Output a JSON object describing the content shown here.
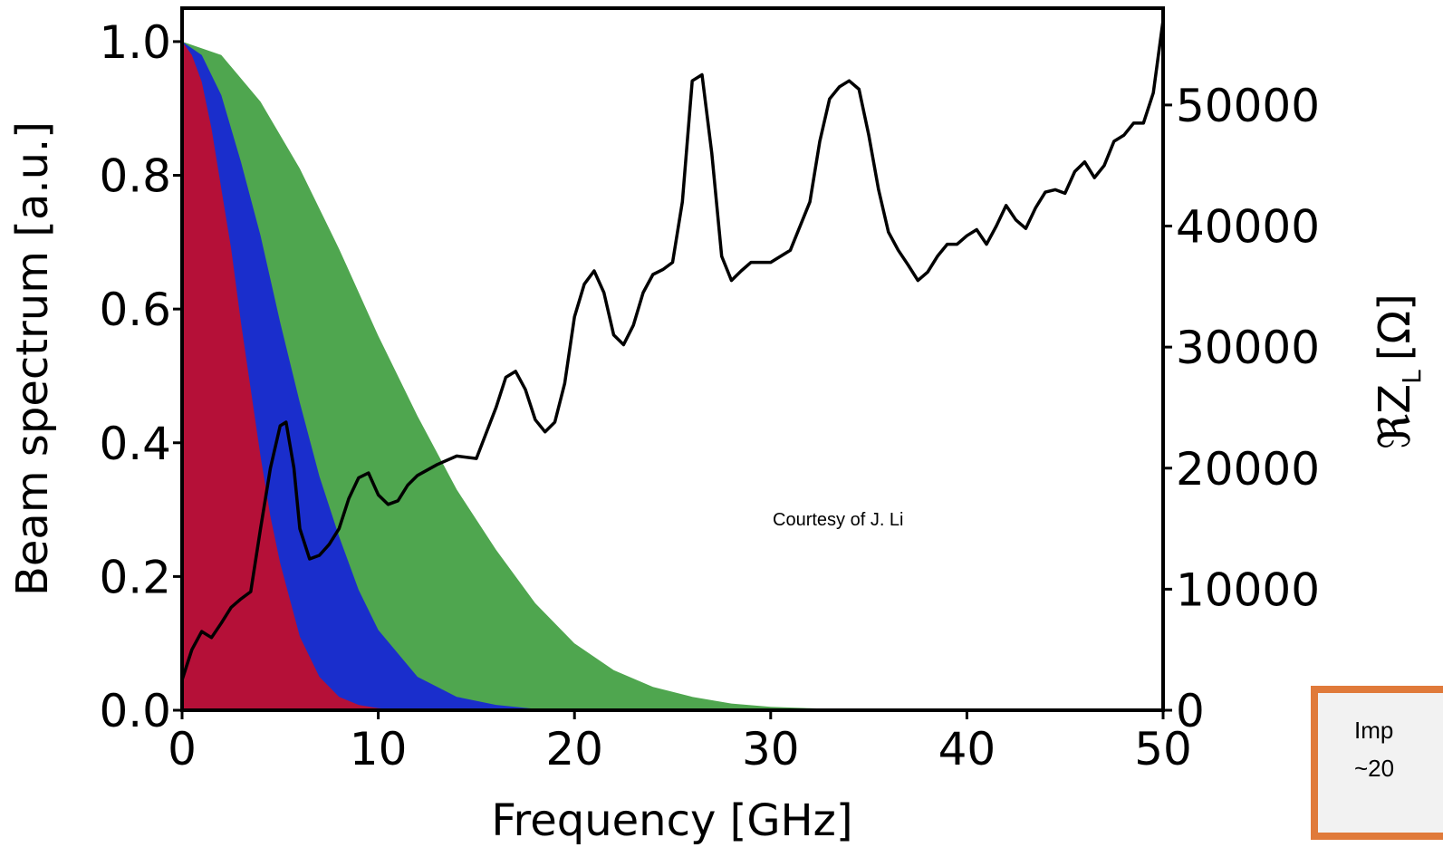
{
  "chart_data": {
    "type": "area",
    "xlabel": "Frequency [GHz]",
    "ylabel_left": "Beam spectrum [a.u.]",
    "ylabel_right": "ℜZ",
    "ylabel_right_subscript": "L",
    "ylabel_right_unit": "[Ω]",
    "xlim": [
      0,
      50
    ],
    "ylim_left": [
      0,
      1.05
    ],
    "ylim_right": [
      0,
      58000
    ],
    "x_ticks": [
      "0",
      "10",
      "20",
      "30",
      "40",
      "50"
    ],
    "y_left_ticks": [
      "0.0",
      "0.2",
      "0.4",
      "0.6",
      "0.8",
      "1.0"
    ],
    "y_right_ticks": [
      "0",
      "10000",
      "20000",
      "30000",
      "40000",
      "50000"
    ],
    "grid": false,
    "beam_spectra": [
      {
        "color": "#4fa64f",
        "x": [
          0,
          2,
          4,
          6,
          8,
          10,
          12,
          14,
          16,
          18,
          20,
          22,
          24,
          26,
          28,
          30,
          32,
          34,
          36,
          50
        ],
        "values": [
          1.0,
          0.98,
          0.91,
          0.81,
          0.69,
          0.56,
          0.44,
          0.33,
          0.24,
          0.16,
          0.1,
          0.06,
          0.035,
          0.02,
          0.01,
          0.005,
          0.003,
          0.001,
          0.0,
          0.0
        ]
      },
      {
        "color": "#1a2ecc",
        "x": [
          0,
          1,
          2,
          3,
          4,
          5,
          6,
          7,
          8,
          9,
          10,
          12,
          14,
          16,
          18,
          20,
          50
        ],
        "values": [
          1.0,
          0.98,
          0.92,
          0.82,
          0.71,
          0.58,
          0.46,
          0.35,
          0.26,
          0.18,
          0.12,
          0.05,
          0.02,
          0.008,
          0.002,
          0.0,
          0.0
        ]
      },
      {
        "color": "#b51038",
        "x": [
          0,
          0.5,
          1,
          1.5,
          2,
          2.5,
          3,
          3.5,
          4,
          4.5,
          5,
          6,
          7,
          8,
          9,
          10,
          11,
          12,
          50
        ],
        "values": [
          1.0,
          0.98,
          0.94,
          0.87,
          0.78,
          0.69,
          0.58,
          0.48,
          0.38,
          0.29,
          0.22,
          0.11,
          0.05,
          0.02,
          0.008,
          0.003,
          0.001,
          0.0,
          0.0
        ]
      }
    ],
    "impedance": {
      "color": "#000000",
      "x": [
        0,
        0.5,
        1,
        1.5,
        2,
        2.5,
        3,
        3.5,
        4,
        4.5,
        5,
        5.3,
        5.7,
        6,
        6.5,
        7,
        7.5,
        8,
        8.5,
        9,
        9.5,
        10,
        10.5,
        11,
        11.5,
        12,
        13,
        14,
        15,
        16,
        16.5,
        17,
        17.5,
        18,
        18.5,
        19,
        19.5,
        20,
        20.5,
        21,
        21.5,
        22,
        22.5,
        23,
        23.5,
        24,
        24.5,
        25,
        25.5,
        26,
        26.5,
        27,
        27.5,
        28,
        28.5,
        29,
        30,
        31,
        32,
        32.5,
        33,
        33.5,
        34,
        34.5,
        35,
        35.5,
        36,
        36.5,
        37,
        37.5,
        38,
        38.5,
        39,
        39.5,
        40,
        40.5,
        41,
        41.5,
        42,
        42.5,
        43,
        43.5,
        44,
        44.5,
        45,
        45.5,
        46,
        46.5,
        47,
        47.5,
        48,
        48.5,
        49,
        49.5,
        50
      ],
      "values": [
        2500,
        5000,
        6500,
        6000,
        7200,
        8500,
        9200,
        9800,
        15000,
        20000,
        23500,
        23800,
        20000,
        15000,
        12500,
        12800,
        13700,
        15000,
        17500,
        19200,
        19600,
        17800,
        17000,
        17300,
        18600,
        19400,
        20300,
        21000,
        20800,
        25000,
        27500,
        28000,
        26500,
        24000,
        23000,
        23800,
        27000,
        32500,
        35200,
        36300,
        34500,
        31000,
        30200,
        31800,
        34500,
        36000,
        36400,
        37000,
        42000,
        52000,
        52500,
        46000,
        37500,
        35500,
        36300,
        37000,
        37000,
        38000,
        42000,
        47000,
        50500,
        51500,
        52000,
        51300,
        47500,
        43000,
        39500,
        38000,
        36800,
        35500,
        36200,
        37500,
        38500,
        38500,
        39200,
        39700,
        38500,
        40000,
        41700,
        40500,
        39800,
        41500,
        42800,
        43000,
        42700,
        44500,
        45300,
        44000,
        45000,
        47000,
        47500,
        48500,
        48500,
        51000,
        57000
      ]
    },
    "annotation": "Courtesy of J. Li"
  },
  "callout": {
    "line1": "Imp",
    "line2": "~20",
    "border_color": "#e07a3a"
  }
}
